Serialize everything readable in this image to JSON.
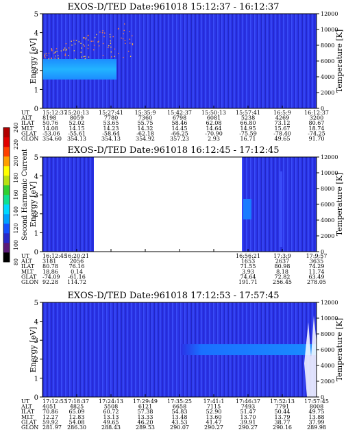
{
  "colorbar": {
    "label": "Second Harmonic Current",
    "ticks": [
      "240",
      "220",
      "200",
      "180",
      "160",
      "140",
      "120",
      "100",
      "80"
    ],
    "colors": [
      "#000000",
      "#5a1a78",
      "#2828c8",
      "#1450ff",
      "#00a0ff",
      "#00d8ff",
      "#10e090",
      "#30d030",
      "#b8e010",
      "#ffff00",
      "#ffa000",
      "#ff4000",
      "#e00000",
      "#b00000"
    ]
  },
  "panels": [
    {
      "title": "EXOS-D/TED   Date:961018   15:12:37 - 16:12:37",
      "ylabel": "Energy [eV]",
      "y2label": "Temperature [K]",
      "yticks": [
        "5",
        "4",
        "3",
        "2",
        "1",
        "0"
      ],
      "y2ticks": [
        "12000",
        "10000",
        "8000",
        "6000",
        "4000",
        "2000",
        "0"
      ],
      "rows": [
        {
          "label": "UT",
          "values": [
            "15:12:37",
            "15:20:13",
            "15:27:41",
            "15:35:9",
            "15:42:37",
            "15:50:13",
            "15:57:41",
            "16:5:9",
            "16:12:37"
          ]
        },
        {
          "label": "ALT",
          "values": [
            "8198",
            "8059",
            "7780",
            "7360",
            "6798",
            "6081",
            "5238",
            "4269",
            "3200"
          ]
        },
        {
          "label": "ILAT",
          "values": [
            "50.76",
            "52.02",
            "53.65",
            "55.75",
            "58.46",
            "62.08",
            "66.80",
            "73.12",
            "80.67"
          ]
        },
        {
          "label": "MLT",
          "values": [
            "14.08",
            "14.15",
            "14.23",
            "14.32",
            "14.45",
            "14.64",
            "14.95",
            "15.67",
            "18.74"
          ]
        },
        {
          "label": "GLAT",
          "values": [
            "-53.06",
            "-55.61",
            "-58.64",
            "-62.18",
            "-66.25",
            "-70.90",
            "-75.59",
            "-78.40",
            "-74.25"
          ]
        },
        {
          "label": "GLON",
          "values": [
            "354.60",
            "354.13",
            "354.13",
            "354.92",
            "357.23",
            "2.93",
            "16.71",
            "49.65",
            "91.70"
          ]
        }
      ]
    },
    {
      "title": "EXOS-D/TED   Date:961018   16:12:45 - 17:12:45",
      "ylabel": "Energy [eV]",
      "y2label": "Temperature [K]",
      "yticks": [
        "5",
        "4",
        "3",
        "2",
        "1",
        "0"
      ],
      "y2ticks": [
        "12000",
        "10000",
        "8000",
        "6000",
        "4000",
        "2000",
        "0"
      ],
      "rows": [
        {
          "label": "UT",
          "values": [
            "16:12:45",
            "16:20:21",
            "",
            "",
            "",
            "",
            "16:56:21",
            "17:3:9",
            "17:9:57"
          ]
        },
        {
          "label": "ALT",
          "values": [
            "3181",
            "2056",
            "",
            "",
            "",
            "",
            "1653",
            "2637",
            "3635"
          ]
        },
        {
          "label": "ILAT",
          "values": [
            "80.78",
            "76.16",
            "",
            "",
            "",
            "",
            "71.55",
            "80.98",
            "74.29"
          ]
        },
        {
          "label": "MLT",
          "values": [
            "18.86",
            "0.14",
            "",
            "",
            "",
            "",
            "3.93",
            "8.18",
            "11.74"
          ]
        },
        {
          "label": "GLAT",
          "values": [
            "-74.09",
            "-61.16",
            "",
            "",
            "",
            "",
            "74.64",
            "72.82",
            "63.49"
          ]
        },
        {
          "label": "GLON",
          "values": [
            "92.28",
            "114.72",
            "",
            "",
            "",
            "",
            "191.71",
            "256.45",
            "278.05"
          ]
        }
      ]
    },
    {
      "title": "EXOS-D/TED   Date:961018   17:12:53 - 17:57:45",
      "ylabel": "Energy [eV]",
      "y2label": "Temperature [K]",
      "yticks": [
        "5",
        "4",
        "3",
        "2",
        "1",
        "0"
      ],
      "y2ticks": [
        "12000",
        "10000",
        "8000",
        "6000",
        "4000",
        "2000",
        "0"
      ],
      "rows": [
        {
          "label": "UT",
          "values": [
            "17:12:53",
            "17:18:37",
            "17:24:13",
            "17:29:49",
            "17:35:25",
            "17:41:1",
            "17:46:37",
            "17:52:13",
            "17:57:45"
          ]
        },
        {
          "label": "ALT",
          "values": [
            "4051",
            "4825",
            "5508",
            "6121",
            "6658",
            "7115",
            "7493",
            "7791",
            "8008"
          ]
        },
        {
          "label": "ILAT",
          "values": [
            "70.86",
            "65.09",
            "60.72",
            "57.38",
            "54.83",
            "52.90",
            "51.47",
            "50.44",
            "49.75"
          ]
        },
        {
          "label": "MLT",
          "values": [
            "12.27",
            "12.83",
            "13.13",
            "13.33",
            "13.48",
            "13.60",
            "13.70",
            "13.79",
            "13.88"
          ]
        },
        {
          "label": "GLAT",
          "values": [
            "59.92",
            "54.08",
            "49.65",
            "46.20",
            "43.53",
            "41.47",
            "39.91",
            "38.77",
            "37.99"
          ]
        },
        {
          "label": "GLON",
          "values": [
            "281.97",
            "286.30",
            "288.43",
            "289.53",
            "290.07",
            "290.27",
            "290.27",
            "290.16",
            "289.98"
          ]
        }
      ]
    }
  ],
  "chart_data": [
    {
      "type": "heatmap",
      "title": "EXOS-D/TED   Date:961018   15:12:37 - 16:12:37",
      "xlabel": "UT",
      "ylabel": "Energy [eV]",
      "y2label": "Temperature [K]",
      "x": [
        "15:12:37",
        "15:20:13",
        "15:27:41",
        "15:35:9",
        "15:42:37",
        "15:50:13",
        "15:57:41",
        "16:5:9",
        "16:12:37"
      ],
      "ylim": [
        0,
        5
      ],
      "y2lim": [
        0,
        12000
      ],
      "background_level": 120,
      "features": [
        {
          "kind": "band",
          "x_start": "15:12:37",
          "x_end": "15:27:41",
          "y_range": [
            1.5,
            2.6
          ],
          "level": 150
        },
        {
          "kind": "scatter-dots",
          "x_start": "15:12:37",
          "x_end": "15:32:00",
          "y_range": [
            2.6,
            5.0
          ],
          "level": 230
        }
      ]
    },
    {
      "type": "heatmap",
      "title": "EXOS-D/TED   Date:961018   16:12:45 - 17:12:45",
      "xlabel": "UT",
      "ylabel": "Energy [eV]",
      "y2label": "Temperature [K]",
      "x": [
        "16:12:45",
        "16:20:21",
        "16:56:21",
        "17:3:9",
        "17:9:57"
      ],
      "ylim": [
        0,
        5
      ],
      "y2lim": [
        0,
        12000
      ],
      "background_level": 120,
      "data_gap": [
        "16:20:21",
        "16:56:21"
      ],
      "features": [
        {
          "kind": "patch",
          "x_start": "16:56:21",
          "x_end": "16:58:30",
          "y_range": [
            2.4,
            3.6
          ],
          "level": 160
        }
      ]
    },
    {
      "type": "heatmap",
      "title": "EXOS-D/TED   Date:961018   17:12:53 - 17:57:45",
      "xlabel": "UT",
      "ylabel": "Energy [eV]",
      "y2label": "Temperature [K]",
      "x": [
        "17:12:53",
        "17:18:37",
        "17:24:13",
        "17:29:49",
        "17:35:25",
        "17:41:1",
        "17:46:37",
        "17:52:13",
        "17:57:45"
      ],
      "ylim": [
        0,
        5
      ],
      "y2lim": [
        0,
        12000
      ],
      "background_level": 120,
      "features": [
        {
          "kind": "band",
          "x_start": "17:32:00",
          "x_end": "17:57:45",
          "y_range": [
            2.3,
            2.8
          ],
          "level": 150
        }
      ]
    }
  ]
}
